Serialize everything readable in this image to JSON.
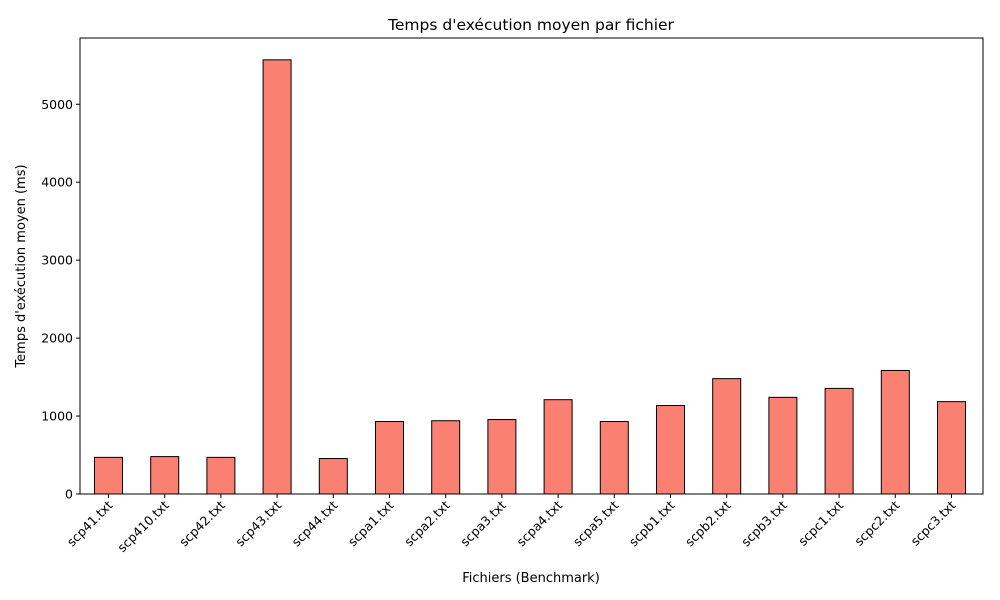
{
  "chart_data": {
    "type": "bar",
    "title": "Temps d'exécution moyen par fichier",
    "xlabel": "Fichiers (Benchmark)",
    "ylabel": "Temps d'exécution moyen (ms)",
    "categories": [
      "scp41.txt",
      "scp410.txt",
      "scp42.txt",
      "scp43.txt",
      "scp44.txt",
      "scpa1.txt",
      "scpa2.txt",
      "scpa3.txt",
      "scpa4.txt",
      "scpa5.txt",
      "scpb1.txt",
      "scpb2.txt",
      "scpb3.txt",
      "scpc1.txt",
      "scpc2.txt",
      "scpc3.txt"
    ],
    "values": [
      470,
      480,
      470,
      5570,
      455,
      930,
      940,
      955,
      1210,
      930,
      1135,
      1480,
      1240,
      1355,
      1585,
      1185
    ],
    "ylim": [
      0,
      5850
    ],
    "yticks": [
      0,
      1000,
      2000,
      3000,
      4000,
      5000
    ],
    "bar_color": "#fa8072",
    "edge_color": "#000000",
    "grid": false,
    "legend": null
  }
}
